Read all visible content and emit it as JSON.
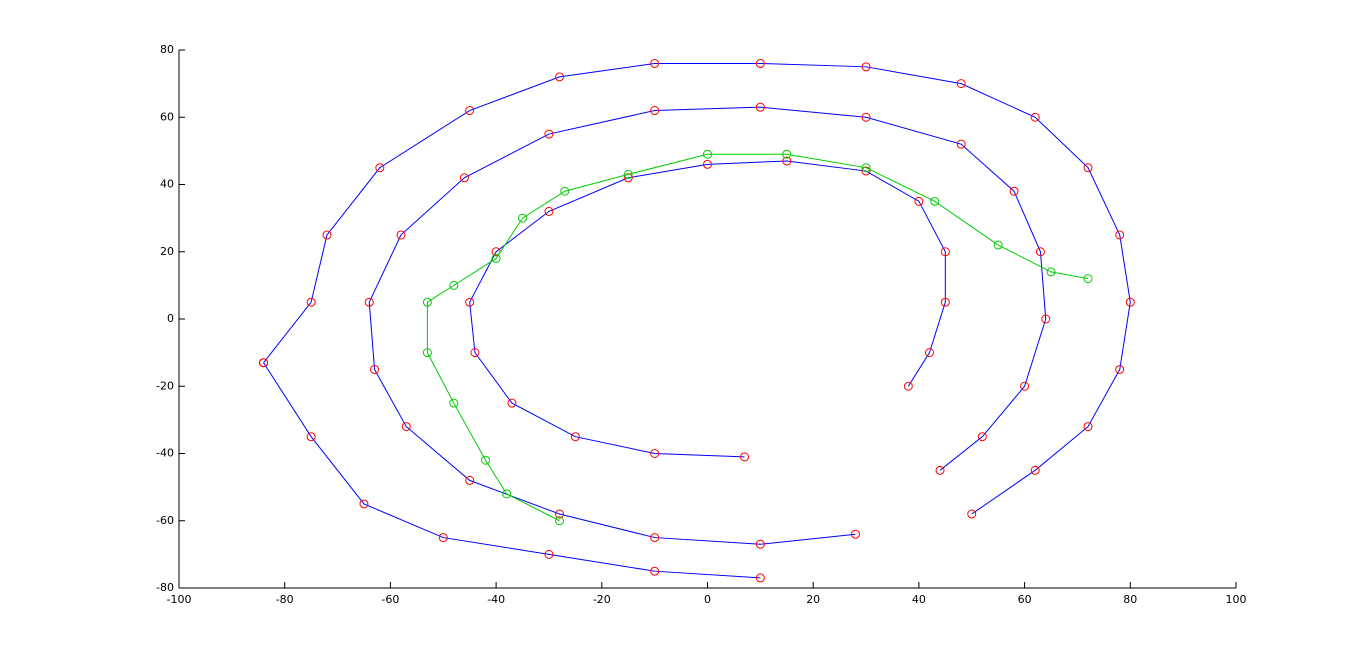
{
  "chart_data": {
    "type": "line",
    "xlim": [
      -100,
      100
    ],
    "xticks": [
      -100,
      -80,
      -60,
      -40,
      -20,
      0,
      20,
      40,
      60,
      80,
      100
    ],
    "ylim": [
      -80,
      80
    ],
    "yticks": [
      -80,
      -60,
      -40,
      -20,
      0,
      20,
      40,
      60,
      80
    ],
    "grid": false,
    "series": [
      {
        "color": "#0000ff",
        "marker_color": "#ff0000",
        "x": [
          7,
          -10,
          -25,
          -37,
          -44,
          -45,
          -40,
          -30,
          -15,
          0,
          15,
          30,
          40,
          45,
          45,
          42,
          38
        ],
        "y": [
          -41,
          -40,
          -35,
          -25,
          -10,
          5,
          20,
          32,
          42,
          46,
          47,
          44,
          35,
          20,
          5,
          -10,
          -20
        ]
      },
      {
        "color": "#0000ff",
        "marker_color": "#ff0000",
        "x": [
          28,
          10,
          -10,
          -28,
          -45,
          -57,
          -63,
          -64,
          -58,
          -46,
          -30,
          -10,
          10,
          30,
          48,
          58,
          63,
          64,
          60,
          52,
          44
        ],
        "y": [
          -64,
          -67,
          -65,
          -58,
          -48,
          -32,
          -15,
          5,
          25,
          42,
          55,
          62,
          63,
          60,
          52,
          38,
          20,
          0,
          -20,
          -35,
          -45
        ]
      },
      {
        "color": "#0000ff",
        "marker_color": "#ff0000",
        "x": [
          -84,
          -75,
          -72,
          -62,
          -45,
          -28,
          -10,
          10,
          30,
          48,
          62,
          72,
          78,
          80,
          78,
          72,
          62,
          50
        ],
        "y": [
          -13,
          5,
          25,
          45,
          62,
          72,
          76,
          76,
          75,
          70,
          60,
          45,
          25,
          5,
          -15,
          -32,
          -45,
          -58
        ]
      },
      {
        "color": "#0000ff",
        "marker_color": "#ff0000",
        "x": [
          -84,
          -75,
          -65,
          -50,
          -30,
          -10,
          10
        ],
        "y": [
          -13,
          -35,
          -55,
          -65,
          -70,
          -75,
          -77
        ]
      },
      {
        "color": "#00cc00",
        "marker_color": "#00cc00",
        "x": [
          -28,
          -38,
          -42,
          -48,
          -53,
          -53,
          -48,
          -40,
          -35,
          -27,
          -15,
          0,
          15,
          30,
          43,
          55,
          65,
          72
        ],
        "y": [
          -60,
          -52,
          -42,
          -25,
          -10,
          5,
          10,
          18,
          30,
          38,
          43,
          49,
          49,
          45,
          35,
          22,
          14,
          12
        ]
      }
    ]
  }
}
